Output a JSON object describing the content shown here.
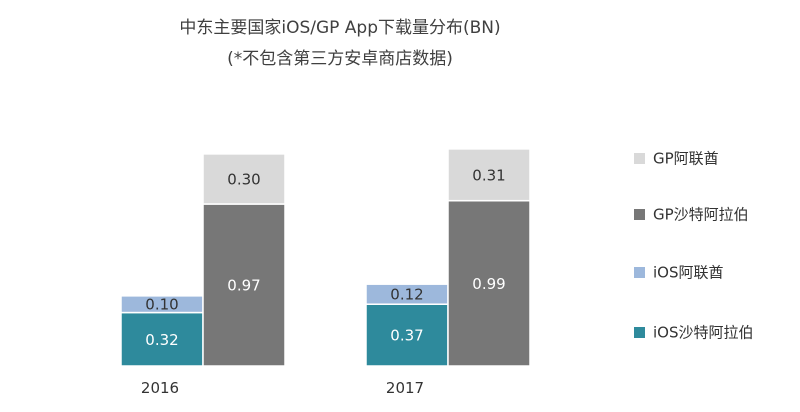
{
  "chart_data": {
    "type": "bar",
    "stacked": true,
    "title": "中东主要国家iOS/GP App下载量分布(BN)",
    "subtitle": "(*不包含第三方安卓商店数据)",
    "categories": [
      "2016",
      "2017"
    ],
    "groups": [
      {
        "stack": "iOS",
        "series": [
          {
            "name": "iOS沙特阿拉伯",
            "values": [
              0.32,
              0.37
            ],
            "labels": [
              "0.32",
              "0.37"
            ],
            "color": "#2e8a9c",
            "label_color": "#ffffff"
          },
          {
            "name": "iOS阿联酋",
            "values": [
              0.1,
              0.12
            ],
            "labels": [
              "0.10",
              "0.12"
            ],
            "color": "#9db8dc",
            "label_color": "#333333"
          }
        ]
      },
      {
        "stack": "GP",
        "series": [
          {
            "name": "GP沙特阿拉伯",
            "values": [
              0.97,
              0.99
            ],
            "labels": [
              "0.97",
              "0.99"
            ],
            "color": "#777777",
            "label_color": "#ffffff"
          },
          {
            "name": "GP阿联酋",
            "values": [
              0.3,
              0.31
            ],
            "labels": [
              "0.30",
              "0.31"
            ],
            "color": "#d9d9d9",
            "label_color": "#333333"
          }
        ]
      }
    ],
    "legend": {
      "placement": "right",
      "order": [
        "GP阿联酋",
        "GP沙特阿拉伯",
        "iOS阿联酋",
        "iOS沙特阿拉伯"
      ]
    },
    "grid": false
  }
}
